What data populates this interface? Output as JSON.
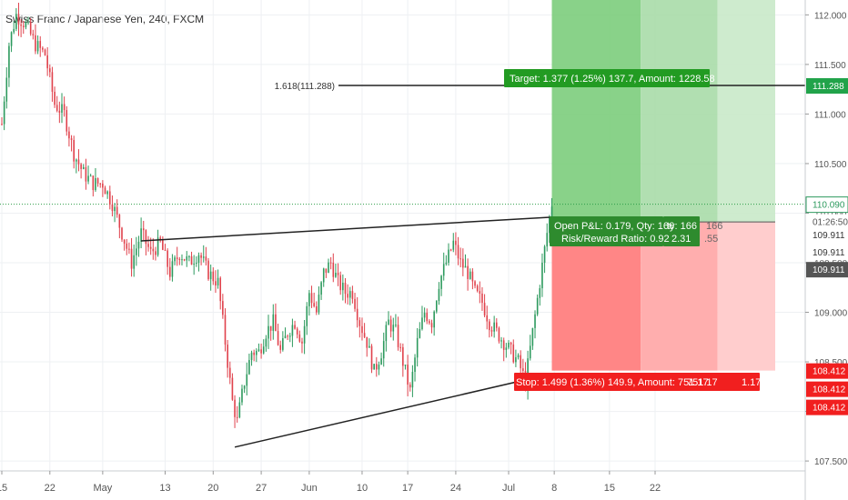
{
  "header": {
    "title": "Swiss Franc / Japanese Yen, 240, FXCM"
  },
  "chart_data": {
    "type": "candlestick",
    "symbol": "CHFJPY",
    "interval": "240",
    "source": "FXCM",
    "ylim": [
      107.4,
      112.15
    ],
    "y_ticks": [
      107.5,
      108.0,
      108.5,
      109.0,
      109.5,
      110.0,
      110.5,
      111.0,
      111.5,
      112.0
    ],
    "y_tick_labels": [
      "107.500",
      "108.000",
      "108.500",
      "109.000",
      "109.500",
      "110.000",
      "110.500",
      "111.000",
      "111.500",
      "112.000"
    ],
    "x_labels": [
      "15",
      "22",
      "May",
      "13",
      "20",
      "27",
      "Jun",
      "10",
      "17",
      "24",
      "Jul",
      "8",
      "15",
      "22"
    ],
    "last_price": "110.090",
    "countdown": "01:26:50",
    "right_labels_green": [
      "111.288"
    ],
    "right_labels_dark": [
      "109.911",
      "109.911",
      "109.911"
    ],
    "right_labels_red": [
      "108.412",
      "108.412",
      "108.412"
    ],
    "fib_label": "1.618(111.288)",
    "fib_level": 111.288,
    "entry_price": 109.911,
    "target_price": 111.288,
    "stop_price": 108.412,
    "target_label": "Target: 1.377 (1.25%) 137.7, Amount: 1228.58",
    "stop_label": "Stop: 1.499 (1.36%) 149.9, Amount: 751.17",
    "stop_label_extra": "751.17",
    "stop_label_extra2": "1.17",
    "pnl_label": "Open P&L: 0.179, Qty: 166",
    "pnl_extra": "ty: 166",
    "pnl_extra2": "166",
    "rr_label": "Risk/Reward Ratio: 0.92",
    "rr_extra": "2.31",
    "rr_extra2": ".55",
    "price_path": [
      [
        0,
        110.9
      ],
      [
        3,
        111.7
      ],
      [
        6,
        112.0
      ],
      [
        10,
        111.9
      ],
      [
        14,
        111.7
      ],
      [
        18,
        111.6
      ],
      [
        22,
        111.1
      ],
      [
        26,
        111.0
      ],
      [
        30,
        110.6
      ],
      [
        34,
        110.4
      ],
      [
        38,
        110.3
      ],
      [
        42,
        110.3
      ],
      [
        46,
        110.1
      ],
      [
        50,
        109.8
      ],
      [
        54,
        109.5
      ],
      [
        58,
        109.8
      ],
      [
        62,
        109.6
      ],
      [
        66,
        109.7
      ],
      [
        70,
        109.4
      ],
      [
        74,
        109.6
      ],
      [
        78,
        109.5
      ],
      [
        82,
        109.6
      ],
      [
        86,
        109.4
      ],
      [
        90,
        109.3
      ],
      [
        92,
        108.9
      ],
      [
        94,
        108.5
      ],
      [
        96,
        108.1
      ],
      [
        98,
        107.9
      ],
      [
        101,
        108.3
      ],
      [
        104,
        108.6
      ],
      [
        107,
        108.6
      ],
      [
        110,
        108.8
      ],
      [
        113,
        108.9
      ],
      [
        116,
        108.6
      ],
      [
        119,
        108.8
      ],
      [
        122,
        108.9
      ],
      [
        125,
        108.7
      ],
      [
        128,
        109.2
      ],
      [
        131,
        109.0
      ],
      [
        134,
        109.4
      ],
      [
        137,
        109.5
      ],
      [
        140,
        109.3
      ],
      [
        143,
        109.2
      ],
      [
        146,
        109.2
      ],
      [
        149,
        108.9
      ],
      [
        152,
        108.7
      ],
      [
        155,
        108.4
      ],
      [
        158,
        108.6
      ],
      [
        161,
        108.9
      ],
      [
        164,
        108.8
      ],
      [
        167,
        108.5
      ],
      [
        170,
        108.2
      ],
      [
        173,
        108.7
      ],
      [
        176,
        109.0
      ],
      [
        179,
        108.9
      ],
      [
        182,
        109.3
      ],
      [
        185,
        109.5
      ],
      [
        188,
        109.7
      ],
      [
        191,
        109.5
      ],
      [
        194,
        109.4
      ],
      [
        197,
        109.2
      ],
      [
        200,
        109.1
      ],
      [
        203,
        108.9
      ],
      [
        206,
        108.8
      ],
      [
        209,
        108.7
      ],
      [
        212,
        108.6
      ],
      [
        215,
        108.5
      ],
      [
        218,
        108.3
      ],
      [
        221,
        108.8
      ],
      [
        224,
        109.3
      ],
      [
        227,
        109.8
      ],
      [
        229,
        110.1
      ]
    ],
    "x_domain": [
      0,
      229
    ],
    "upper_trendline": [
      [
        58,
        109.72
      ],
      [
        229,
        109.96
      ]
    ],
    "lower_trendline": [
      [
        97,
        107.64
      ],
      [
        229,
        108.38
      ]
    ],
    "position_start_x": 229,
    "position_end_x": 322,
    "grid": true
  }
}
